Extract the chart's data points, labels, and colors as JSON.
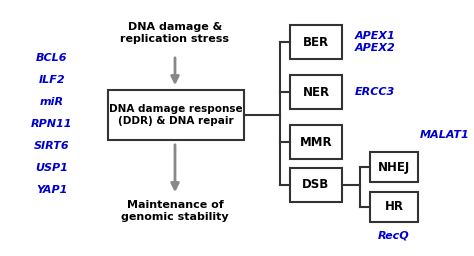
{
  "bg_color": "#ffffff",
  "left_genes": [
    "BCL6",
    "ILF2",
    "miR",
    "RPN11",
    "SIRT6",
    "USP1",
    "YAP1"
  ],
  "gene_color": "#0000cc",
  "top_text_lines": [
    "DNA damage &",
    "replication stress"
  ],
  "main_box_label": [
    "DNA damage response",
    "(DDR) & DNA repair"
  ],
  "bottom_text_lines": [
    "Maintenance of",
    "genomic stability"
  ],
  "repair_boxes": [
    {
      "label": "BER"
    },
    {
      "label": "NER"
    },
    {
      "label": "MMR"
    },
    {
      "label": "DSB"
    }
  ],
  "sub_boxes": [
    {
      "label": "NHEJ"
    },
    {
      "label": "HR"
    }
  ],
  "right_labels": [
    {
      "text": "APEX1\nAPEX2",
      "va": "center"
    },
    {
      "text": "ERCC3",
      "va": "center"
    },
    {
      "text": "MALAT1",
      "va": "center"
    },
    {
      "text": "RecQ",
      "va": "center"
    }
  ],
  "box_edge_color": "#333333",
  "arrow_color": "#888888",
  "text_color": "#000000",
  "italic_color": "#0000cc"
}
